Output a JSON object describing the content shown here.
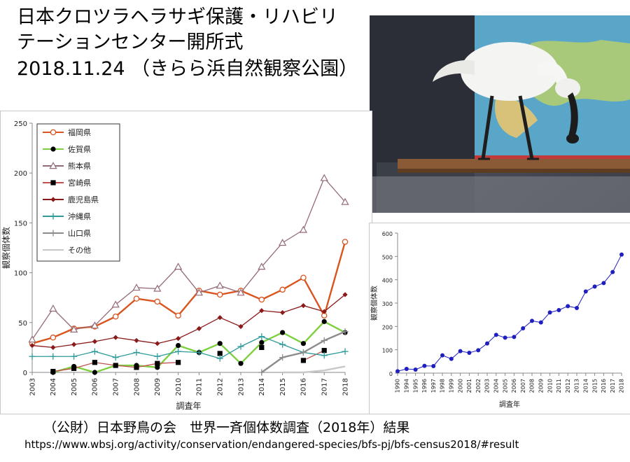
{
  "slide": {
    "title_line1": "日本クロツラヘラサギ保護・リハビリ",
    "title_line2": "テーションセンター開所式",
    "title_line3": "2018.11.24 （きらら浜自然観察公園）",
    "source_line": "（公財）日本野鳥の会　世界一斉個体数調査（2018年）結果",
    "url": "https://www.wbsj.org/activity/conservation/endangered-species/bfs-pj/bfs-census2018/#result"
  },
  "photo": {
    "subject": "black-faced-spoonbill-model"
  },
  "chart_data": [
    {
      "type": "line",
      "xlabel": "調査年",
      "ylabel": "観察個体数",
      "ylim": [
        0,
        250
      ],
      "yticks": [
        0,
        50,
        100,
        150,
        200,
        250
      ],
      "categories": [
        "2003",
        "2004",
        "2005",
        "2006",
        "2007",
        "2008",
        "2009",
        "2010",
        "2011",
        "2012",
        "2013",
        "2014",
        "2015",
        "2016",
        "2017",
        "2018"
      ],
      "legend_position": "top-left",
      "series": [
        {
          "name": "福岡県",
          "color": "#d9541e",
          "marker": "circle-open",
          "values": [
            29,
            35,
            44,
            46,
            56,
            74,
            71,
            57,
            82,
            78,
            82,
            73,
            83,
            95,
            57,
            131
          ]
        },
        {
          "name": "佐賀県",
          "color": "#7fd040",
          "marker": "circle-filled",
          "values": [
            null,
            0,
            6,
            0,
            7,
            7,
            5,
            27,
            20,
            29,
            9,
            30,
            40,
            29,
            51,
            40
          ]
        },
        {
          "name": "熊本県",
          "color": "#956b78",
          "marker": "triangle-open",
          "values": [
            33,
            64,
            43,
            47,
            68,
            85,
            84,
            106,
            80,
            87,
            80,
            106,
            130,
            143,
            195,
            171
          ]
        },
        {
          "name": "宮崎県",
          "color": "#c0504d",
          "marker": "square-filled",
          "values": [
            null,
            1,
            4,
            10,
            7,
            5,
            9,
            10,
            null,
            19,
            null,
            25,
            null,
            12,
            22,
            null
          ]
        },
        {
          "name": "鹿児島県",
          "color": "#8b1a1a",
          "marker": "diamond-filled",
          "values": [
            27,
            25,
            28,
            31,
            35,
            32,
            29,
            34,
            44,
            55,
            46,
            62,
            60,
            67,
            61,
            78
          ]
        },
        {
          "name": "沖縄県",
          "color": "#2e9a9a",
          "marker": "plus",
          "values": [
            16,
            16,
            16,
            21,
            15,
            20,
            16,
            21,
            20,
            14,
            26,
            36,
            28,
            20,
            17,
            21
          ]
        },
        {
          "name": "山口県",
          "color": "#8c8c8c",
          "marker": "plus",
          "values": [
            null,
            null,
            null,
            null,
            null,
            null,
            null,
            null,
            null,
            null,
            null,
            0,
            15,
            20,
            32,
            41
          ]
        },
        {
          "name": "その他",
          "color": "#c8c8c8",
          "marker": "none",
          "values": [
            null,
            null,
            null,
            null,
            null,
            null,
            null,
            null,
            null,
            null,
            null,
            null,
            0,
            0,
            2,
            6
          ]
        }
      ]
    },
    {
      "type": "line",
      "xlabel": "調査年",
      "ylabel": "観察個体数",
      "ylim": [
        0,
        600
      ],
      "yticks": [
        0,
        100,
        200,
        300,
        400,
        500,
        600
      ],
      "categories": [
        "1990",
        "1994",
        "1995",
        "1996",
        "1997",
        "1998",
        "1999",
        "2000",
        "2001",
        "2002",
        "2003",
        "2004",
        "2005",
        "2006",
        "2007",
        "2008",
        "2009",
        "2010",
        "2011",
        "2012",
        "2013",
        "2014",
        "2015",
        "2016",
        "2017",
        "2018"
      ],
      "series": [
        {
          "name": "",
          "color": "#1f1fbf",
          "marker": "circle-filled",
          "values": [
            8,
            18,
            15,
            31,
            30,
            76,
            61,
            94,
            87,
            98,
            127,
            164,
            152,
            155,
            192,
            224,
            217,
            260,
            270,
            287,
            279,
            350,
            371,
            386,
            433,
            508
          ]
        }
      ]
    }
  ]
}
